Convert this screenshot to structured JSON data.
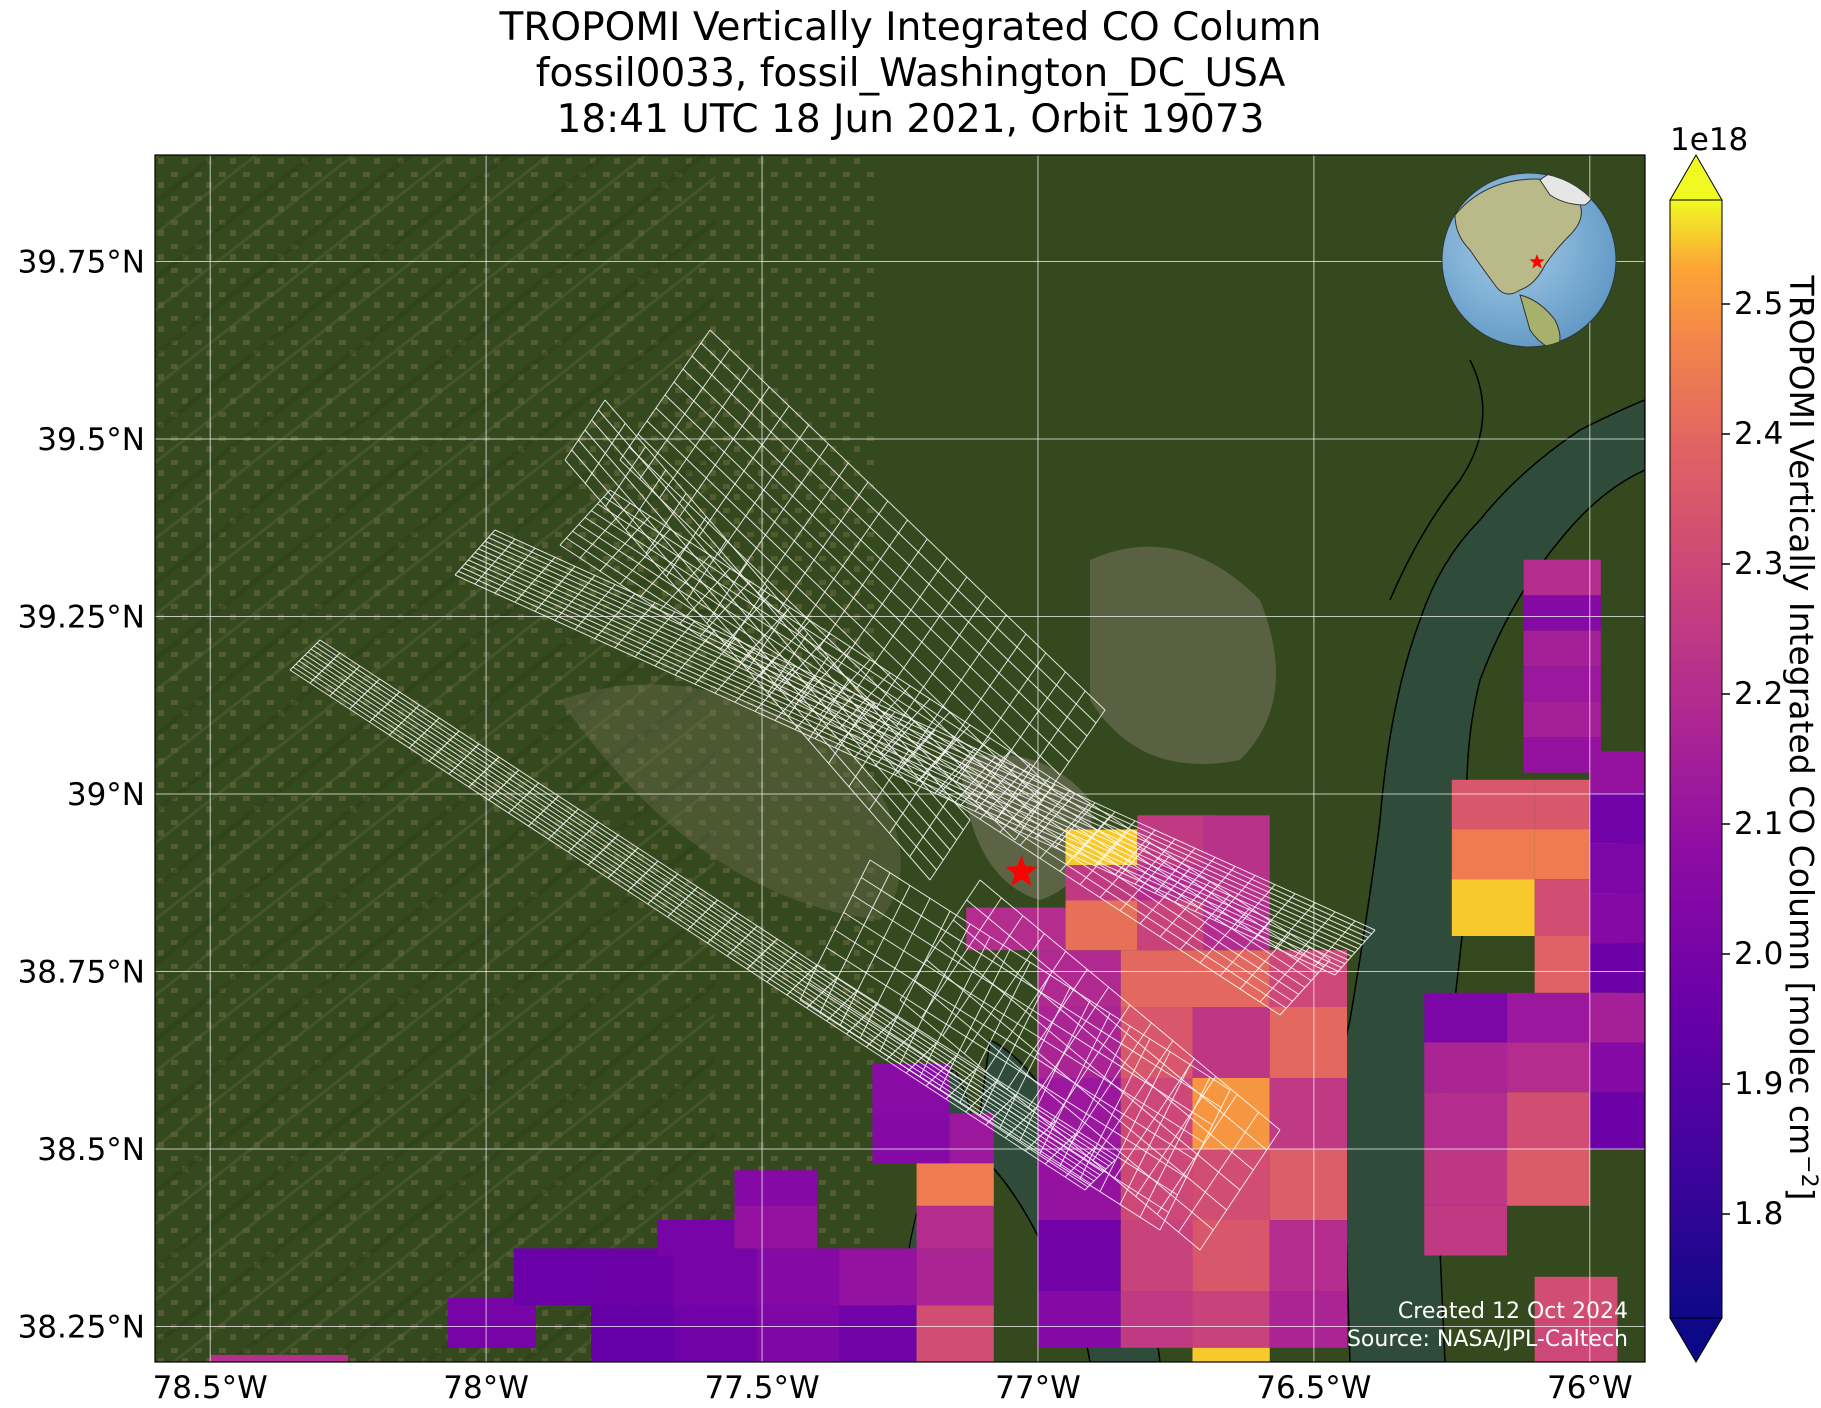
{
  "title": {
    "line1": "TROPOMI Vertically Integrated CO Column",
    "line2": "fossil0033, fossil_Washington_DC_USA",
    "line3": "18:41 UTC 18 Jun 2021, Orbit 19073"
  },
  "map": {
    "lon_range": [
      -78.6,
      -75.9
    ],
    "lat_range": [
      38.2,
      39.9
    ],
    "lon_ticks": [
      -78.5,
      -78.0,
      -77.5,
      -77.0,
      -76.5,
      -76.0
    ],
    "lat_ticks": [
      38.25,
      38.5,
      38.75,
      39.0,
      39.25,
      39.5,
      39.75
    ],
    "lon_tick_labels": [
      "78.5°W",
      "78°W",
      "77.5°W",
      "77°W",
      "76.5°W",
      "76°W"
    ],
    "lat_tick_labels": [
      "38.25°N",
      "38.5°N",
      "38.75°N",
      "39°N",
      "39.25°N",
      "39.5°N",
      "39.75°N"
    ],
    "site_marker": {
      "lon": -77.03,
      "lat": 38.89,
      "color": "#ff0000",
      "icon": "star"
    },
    "gridlines": true,
    "basemap": "satellite imagery"
  },
  "colorbar": {
    "label": "TROPOMI Vertically Integrated CO Column [molec cm",
    "label_exp": "−2",
    "label_end": "]",
    "multiplier": "1e18",
    "range": [
      1.72,
      2.58
    ],
    "ticks": [
      1.8,
      1.9,
      2.0,
      2.1,
      2.2,
      2.3,
      2.4,
      2.5
    ],
    "tick_labels": [
      "1.8",
      "1.9",
      "2.0",
      "2.1",
      "2.2",
      "2.3",
      "2.4",
      "2.5"
    ],
    "colormap": "plasma",
    "extend": "both"
  },
  "credits": {
    "created": "Created 12 Oct 2024",
    "source": "Source: NASA/JPL-Caltech"
  },
  "inset_globe": {
    "icon": "globe",
    "marker_color": "#ff0000"
  },
  "pixels": [
    [
      -78.5,
      38.19,
      -78.25,
      38.21,
      2.21
    ],
    [
      -78.07,
      38.22,
      -77.91,
      38.29,
      2.0
    ],
    [
      -77.95,
      38.28,
      -77.8,
      38.36,
      1.96
    ],
    [
      -77.81,
      38.2,
      -77.66,
      38.28,
      1.95
    ],
    [
      -77.8,
      38.28,
      -77.66,
      38.36,
      1.97
    ],
    [
      -77.69,
      38.35,
      -77.55,
      38.4,
      2.0
    ],
    [
      -77.66,
      38.2,
      -77.51,
      38.28,
      1.98
    ],
    [
      -77.66,
      38.28,
      -77.51,
      38.36,
      2.0
    ],
    [
      -77.55,
      38.36,
      -77.4,
      38.42,
      2.1
    ],
    [
      -77.51,
      38.2,
      -77.36,
      38.28,
      2.03
    ],
    [
      -77.51,
      38.28,
      -77.36,
      38.36,
      2.05
    ],
    [
      -77.55,
      38.42,
      -77.4,
      38.47,
      2.05
    ],
    [
      -77.36,
      38.2,
      -77.22,
      38.28,
      1.98
    ],
    [
      -77.36,
      38.28,
      -77.22,
      38.36,
      2.1
    ],
    [
      -77.22,
      38.2,
      -77.08,
      38.28,
      2.32
    ],
    [
      -77.22,
      38.28,
      -77.08,
      38.36,
      2.17
    ],
    [
      -77.22,
      38.36,
      -77.08,
      38.42,
      2.2
    ],
    [
      -77.22,
      38.42,
      -77.08,
      38.48,
      2.45
    ],
    [
      -77.22,
      38.48,
      -77.08,
      38.55,
      2.12
    ],
    [
      -77.3,
      38.48,
      -77.16,
      38.55,
      2.05
    ],
    [
      -77.3,
      38.55,
      -77.16,
      38.62,
      2.06
    ],
    [
      -77.0,
      38.6,
      -76.85,
      38.7,
      2.17
    ],
    [
      -77.0,
      38.5,
      -76.85,
      38.6,
      2.12
    ],
    [
      -77.0,
      38.4,
      -76.85,
      38.5,
      2.1
    ],
    [
      -77.0,
      38.3,
      -76.85,
      38.4,
      1.98
    ],
    [
      -77.0,
      38.22,
      -76.85,
      38.3,
      2.05
    ],
    [
      -77.0,
      38.7,
      -76.85,
      38.78,
      2.19
    ],
    [
      -76.85,
      38.7,
      -76.72,
      38.78,
      2.4
    ],
    [
      -76.85,
      38.6,
      -76.72,
      38.7,
      2.35
    ],
    [
      -76.85,
      38.5,
      -76.72,
      38.6,
      2.3
    ],
    [
      -76.85,
      38.4,
      -76.72,
      38.5,
      2.3
    ],
    [
      -76.85,
      38.3,
      -76.72,
      38.4,
      2.28
    ],
    [
      -76.85,
      38.22,
      -76.72,
      38.3,
      2.25
    ],
    [
      -76.72,
      38.7,
      -76.58,
      38.78,
      2.4
    ],
    [
      -76.72,
      38.6,
      -76.58,
      38.7,
      2.24
    ],
    [
      -76.72,
      38.5,
      -76.58,
      38.6,
      2.5
    ],
    [
      -76.72,
      38.4,
      -76.58,
      38.5,
      2.32
    ],
    [
      -76.72,
      38.3,
      -76.58,
      38.4,
      2.35
    ],
    [
      -76.72,
      38.22,
      -76.58,
      38.3,
      2.28
    ],
    [
      -76.72,
      38.17,
      -76.58,
      38.22,
      2.55
    ],
    [
      -76.58,
      38.7,
      -76.44,
      38.78,
      2.3
    ],
    [
      -76.58,
      38.6,
      -76.44,
      38.7,
      2.4
    ],
    [
      -76.58,
      38.5,
      -76.44,
      38.6,
      2.25
    ],
    [
      -76.58,
      38.4,
      -76.44,
      38.5,
      2.37
    ],
    [
      -76.58,
      38.3,
      -76.44,
      38.4,
      2.2
    ],
    [
      -76.58,
      38.22,
      -76.44,
      38.3,
      2.17
    ],
    [
      -77.13,
      38.78,
      -76.95,
      38.84,
      2.2
    ],
    [
      -76.95,
      38.78,
      -76.82,
      38.85,
      2.42
    ],
    [
      -76.82,
      38.78,
      -76.7,
      38.85,
      2.28
    ],
    [
      -76.95,
      38.85,
      -76.82,
      38.9,
      2.25
    ],
    [
      -76.82,
      38.85,
      -76.7,
      38.9,
      2.2
    ],
    [
      -76.95,
      38.9,
      -76.82,
      38.95,
      2.55
    ],
    [
      -76.82,
      38.9,
      -76.68,
      38.97,
      2.25
    ],
    [
      -76.7,
      38.85,
      -76.58,
      38.9,
      2.22
    ],
    [
      -76.7,
      38.78,
      -76.58,
      38.85,
      2.2
    ],
    [
      -76.7,
      38.9,
      -76.58,
      38.97,
      2.22
    ],
    [
      -76.3,
      38.65,
      -76.15,
      38.72,
      2.02
    ],
    [
      -76.3,
      38.58,
      -76.15,
      38.65,
      2.17
    ],
    [
      -76.3,
      38.5,
      -76.15,
      38.58,
      2.2
    ],
    [
      -76.3,
      38.42,
      -76.15,
      38.5,
      2.24
    ],
    [
      -76.3,
      38.35,
      -76.15,
      38.42,
      2.25
    ],
    [
      -76.15,
      38.65,
      -76.0,
      38.72,
      2.12
    ],
    [
      -76.15,
      38.58,
      -76.0,
      38.65,
      2.2
    ],
    [
      -76.15,
      38.5,
      -76.0,
      38.58,
      2.32
    ],
    [
      -76.15,
      38.42,
      -76.0,
      38.5,
      2.36
    ],
    [
      -76.0,
      38.65,
      -75.9,
      38.72,
      2.15
    ],
    [
      -76.0,
      38.58,
      -75.9,
      38.65,
      2.05
    ],
    [
      -76.0,
      38.5,
      -75.9,
      38.58,
      1.97
    ],
    [
      -76.1,
      38.26,
      -75.95,
      38.32,
      2.32
    ],
    [
      -76.1,
      38.2,
      -75.95,
      38.26,
      2.3
    ],
    [
      -76.25,
      38.95,
      -76.1,
      39.02,
      2.35
    ],
    [
      -76.25,
      38.88,
      -76.1,
      38.95,
      2.45
    ],
    [
      -76.25,
      38.8,
      -76.1,
      38.88,
      2.55
    ],
    [
      -76.1,
      38.95,
      -75.95,
      39.02,
      2.35
    ],
    [
      -76.1,
      38.88,
      -75.95,
      38.95,
      2.45
    ],
    [
      -76.1,
      38.8,
      -75.95,
      38.88,
      2.32
    ],
    [
      -76.1,
      38.72,
      -75.95,
      38.8,
      2.38
    ],
    [
      -76.0,
      39.0,
      -75.9,
      39.06,
      2.1
    ],
    [
      -76.0,
      38.93,
      -75.9,
      39.0,
      1.98
    ],
    [
      -76.0,
      38.86,
      -75.9,
      38.93,
      2.02
    ],
    [
      -76.0,
      38.79,
      -75.9,
      38.86,
      2.05
    ],
    [
      -76.0,
      38.72,
      -75.9,
      38.79,
      1.97
    ],
    [
      -76.12,
      39.28,
      -75.98,
      39.33,
      2.2
    ],
    [
      -76.12,
      39.23,
      -75.98,
      39.28,
      2.05
    ],
    [
      -76.12,
      39.18,
      -75.98,
      39.23,
      2.15
    ],
    [
      -76.12,
      39.13,
      -75.98,
      39.18,
      2.12
    ],
    [
      -76.12,
      39.08,
      -75.98,
      39.13,
      2.15
    ],
    [
      -76.12,
      39.03,
      -75.98,
      39.08,
      2.1
    ]
  ]
}
